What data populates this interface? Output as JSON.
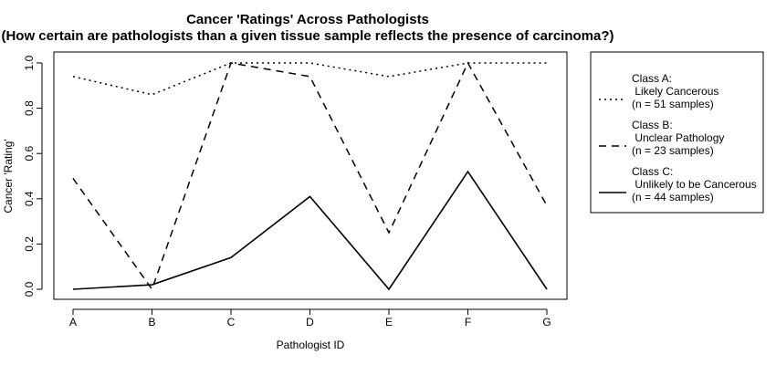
{
  "chart_data": {
    "type": "line",
    "title": "Cancer 'Ratings' Across Pathologists",
    "subtitle": "(How certain are pathologists than a given tissue sample reflects the presence of carcinoma?)",
    "xlabel": "Pathologist ID",
    "ylabel": "Cancer 'Rating'",
    "categories": [
      "A",
      "B",
      "C",
      "D",
      "E",
      "F",
      "G"
    ],
    "ylim": [
      0,
      1
    ],
    "yticks": [
      "0.0",
      "0.2",
      "0.4",
      "0.6",
      "0.8",
      "1.0"
    ],
    "grid": false,
    "legend_position": "right",
    "series": [
      {
        "legend_lines": [
          "Class A:",
          " Likely Cancerous",
          "(n = 51 samples)"
        ],
        "line_style": "dotted",
        "values": [
          0.94,
          0.86,
          1.0,
          1.0,
          0.94,
          1.0,
          1.0
        ]
      },
      {
        "legend_lines": [
          "Class B:",
          " Unclear Pathology",
          "(n = 23 samples)"
        ],
        "line_style": "dashed",
        "values": [
          0.49,
          0.0,
          1.0,
          0.94,
          0.25,
          1.0,
          0.37
        ]
      },
      {
        "legend_lines": [
          "Class C:",
          " Unlikely to be Cancerous",
          "(n = 44 samples)"
        ],
        "line_style": "solid",
        "values": [
          0.0,
          0.02,
          0.14,
          0.41,
          0.0,
          0.52,
          0.0
        ]
      }
    ]
  }
}
